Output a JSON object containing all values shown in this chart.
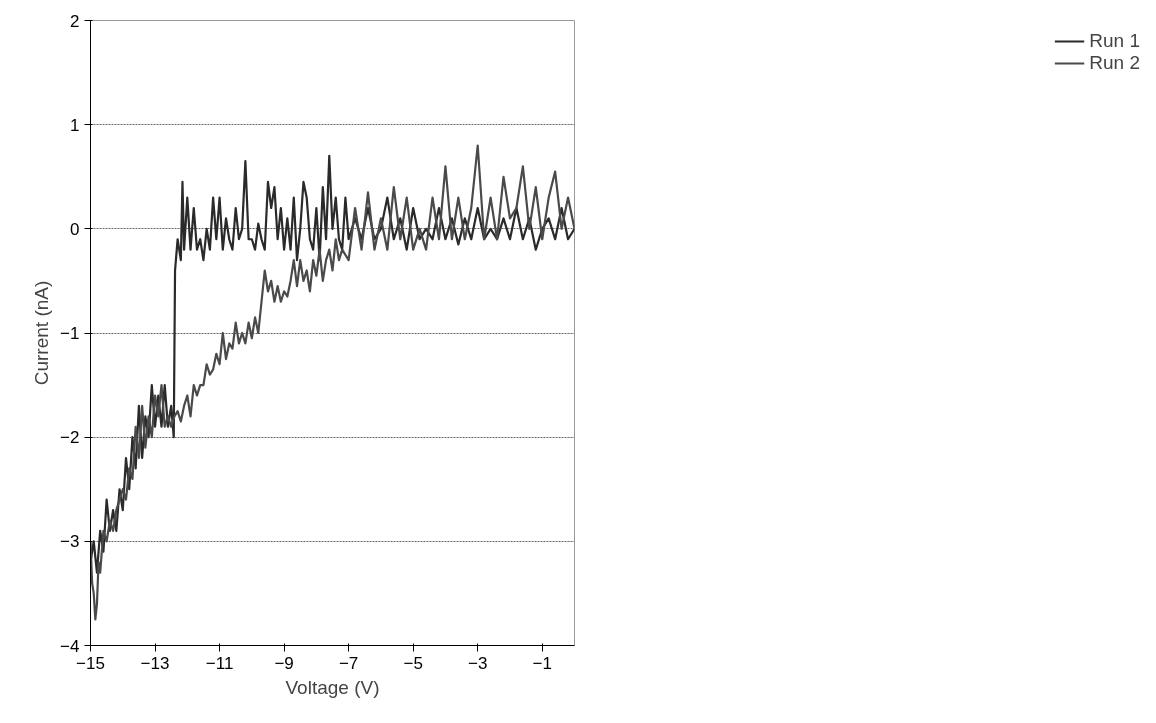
{
  "chart_data": {
    "type": "line",
    "xlabel": "Voltage (V)",
    "ylabel": "Current (nA)",
    "xlim": [
      -15,
      0
    ],
    "ylim": [
      -4,
      2
    ],
    "xticks": [
      -15,
      -13,
      -11,
      -9,
      -7,
      -5,
      -3,
      -1
    ],
    "yticks": [
      -4,
      -3,
      -2,
      -1,
      0,
      1,
      2
    ],
    "grid": "y",
    "legend": "right",
    "marker": "none",
    "line_style": "solid",
    "series": [
      {
        "name": "Run 1",
        "color": "#2a2a2a",
        "x": [
          -15.0,
          -14.9,
          -14.8,
          -14.7,
          -14.6,
          -14.5,
          -14.4,
          -14.3,
          -14.2,
          -14.1,
          -14.0,
          -13.9,
          -13.8,
          -13.7,
          -13.6,
          -13.5,
          -13.4,
          -13.3,
          -13.2,
          -13.1,
          -13.0,
          -12.9,
          -12.8,
          -12.7,
          -12.6,
          -12.5,
          -12.42,
          -12.38,
          -12.3,
          -12.2,
          -12.15,
          -12.1,
          -12.0,
          -11.9,
          -11.8,
          -11.7,
          -11.6,
          -11.5,
          -11.4,
          -11.3,
          -11.2,
          -11.1,
          -11.0,
          -10.9,
          -10.8,
          -10.7,
          -10.6,
          -10.5,
          -10.4,
          -10.3,
          -10.2,
          -10.1,
          -10.0,
          -9.9,
          -9.8,
          -9.7,
          -9.6,
          -9.5,
          -9.4,
          -9.3,
          -9.2,
          -9.1,
          -9.0,
          -8.9,
          -8.8,
          -8.7,
          -8.6,
          -8.5,
          -8.4,
          -8.3,
          -8.2,
          -8.1,
          -8.0,
          -7.9,
          -7.8,
          -7.7,
          -7.6,
          -7.5,
          -7.4,
          -7.3,
          -7.2,
          -7.1,
          -7.0,
          -6.8,
          -6.6,
          -6.4,
          -6.2,
          -6.0,
          -5.8,
          -5.6,
          -5.4,
          -5.2,
          -5.0,
          -4.8,
          -4.6,
          -4.4,
          -4.2,
          -4.0,
          -3.8,
          -3.6,
          -3.4,
          -3.2,
          -3.0,
          -2.8,
          -2.6,
          -2.4,
          -2.2,
          -2.0,
          -1.8,
          -1.6,
          -1.4,
          -1.2,
          -1.0,
          -0.8,
          -0.6,
          -0.4,
          -0.2,
          0.0
        ],
        "values": [
          -3.2,
          -3.0,
          -3.3,
          -2.9,
          -3.1,
          -2.6,
          -2.9,
          -2.7,
          -2.9,
          -2.5,
          -2.7,
          -2.2,
          -2.5,
          -2.0,
          -2.3,
          -1.7,
          -2.2,
          -1.8,
          -2.0,
          -1.5,
          -1.9,
          -1.6,
          -1.9,
          -1.5,
          -1.9,
          -1.7,
          -2.0,
          -0.4,
          -0.1,
          -0.3,
          0.45,
          -0.2,
          0.3,
          -0.2,
          0.2,
          -0.2,
          -0.1,
          -0.3,
          0.0,
          -0.2,
          0.3,
          -0.1,
          0.3,
          -0.2,
          0.1,
          -0.1,
          -0.2,
          0.2,
          -0.1,
          0.0,
          0.65,
          -0.1,
          -0.1,
          -0.2,
          0.05,
          -0.1,
          -0.2,
          0.45,
          0.2,
          0.4,
          -0.1,
          0.2,
          -0.2,
          0.1,
          -0.2,
          0.3,
          -0.3,
          0.0,
          0.45,
          0.3,
          -0.1,
          -0.2,
          0.2,
          -0.3,
          0.4,
          -0.1,
          0.7,
          0.0,
          0.3,
          -0.1,
          -0.2,
          0.3,
          -0.1,
          0.1,
          -0.1,
          0.2,
          -0.1,
          0.0,
          0.3,
          -0.1,
          0.1,
          -0.2,
          0.2,
          -0.1,
          0.0,
          -0.1,
          0.2,
          -0.1,
          0.1,
          -0.15,
          0.1,
          -0.1,
          0.2,
          -0.1,
          0.0,
          -0.1,
          0.1,
          -0.1,
          0.2,
          -0.1,
          0.1,
          -0.2,
          0.0,
          0.1,
          -0.1,
          0.2,
          -0.1,
          0.0
        ]
      },
      {
        "name": "Run 2",
        "color": "#4a4a4a",
        "x": [
          -15.0,
          -14.95,
          -14.9,
          -14.85,
          -14.8,
          -14.75,
          -14.7,
          -14.6,
          -14.5,
          -14.4,
          -14.3,
          -14.2,
          -14.1,
          -14.0,
          -13.9,
          -13.8,
          -13.7,
          -13.6,
          -13.5,
          -13.4,
          -13.3,
          -13.2,
          -13.1,
          -13.0,
          -12.9,
          -12.8,
          -12.7,
          -12.6,
          -12.5,
          -12.4,
          -12.3,
          -12.2,
          -12.1,
          -12.0,
          -11.9,
          -11.8,
          -11.7,
          -11.6,
          -11.5,
          -11.4,
          -11.3,
          -11.2,
          -11.1,
          -11.0,
          -10.9,
          -10.8,
          -10.7,
          -10.6,
          -10.5,
          -10.4,
          -10.3,
          -10.2,
          -10.1,
          -10.0,
          -9.9,
          -9.8,
          -9.7,
          -9.6,
          -9.5,
          -9.4,
          -9.3,
          -9.2,
          -9.1,
          -9.0,
          -8.9,
          -8.8,
          -8.7,
          -8.6,
          -8.5,
          -8.4,
          -8.3,
          -8.2,
          -8.1,
          -8.0,
          -7.9,
          -7.8,
          -7.7,
          -7.6,
          -7.5,
          -7.4,
          -7.3,
          -7.2,
          -7.0,
          -6.8,
          -6.6,
          -6.4,
          -6.2,
          -6.0,
          -5.8,
          -5.6,
          -5.4,
          -5.2,
          -5.0,
          -4.8,
          -4.6,
          -4.4,
          -4.2,
          -4.0,
          -3.8,
          -3.6,
          -3.4,
          -3.2,
          -3.0,
          -2.8,
          -2.6,
          -2.4,
          -2.2,
          -2.0,
          -1.8,
          -1.6,
          -1.4,
          -1.2,
          -1.0,
          -0.8,
          -0.6,
          -0.4,
          -0.2,
          0.0
        ],
        "values": [
          -3.0,
          -3.4,
          -3.5,
          -3.75,
          -3.6,
          -3.2,
          -3.3,
          -2.9,
          -3.0,
          -2.8,
          -2.9,
          -2.7,
          -2.6,
          -2.5,
          -2.6,
          -2.3,
          -2.4,
          -1.9,
          -2.2,
          -1.7,
          -2.1,
          -1.8,
          -2.0,
          -1.6,
          -1.8,
          -1.5,
          -1.9,
          -1.8,
          -1.9,
          -1.8,
          -1.75,
          -1.85,
          -1.7,
          -1.6,
          -1.8,
          -1.5,
          -1.6,
          -1.5,
          -1.5,
          -1.3,
          -1.4,
          -1.35,
          -1.2,
          -1.3,
          -1.0,
          -1.25,
          -1.1,
          -1.15,
          -0.9,
          -1.1,
          -1.0,
          -1.1,
          -0.9,
          -1.05,
          -0.85,
          -1.0,
          -0.7,
          -0.4,
          -0.6,
          -0.5,
          -0.7,
          -0.55,
          -0.7,
          -0.6,
          -0.65,
          -0.5,
          -0.3,
          -0.55,
          -0.3,
          -0.5,
          -0.4,
          -0.6,
          -0.3,
          -0.45,
          -0.2,
          -0.5,
          -0.3,
          -0.2,
          -0.4,
          -0.1,
          -0.3,
          -0.2,
          -0.3,
          0.2,
          -0.2,
          0.35,
          -0.2,
          0.1,
          -0.2,
          0.4,
          -0.1,
          0.3,
          -0.2,
          0.0,
          -0.2,
          0.3,
          -0.1,
          0.6,
          -0.1,
          0.3,
          -0.1,
          0.2,
          0.8,
          -0.1,
          0.3,
          -0.1,
          0.5,
          0.1,
          0.2,
          0.6,
          0.0,
          0.4,
          -0.1,
          0.3,
          0.55,
          0.0,
          0.3,
          0.0
        ]
      }
    ]
  }
}
